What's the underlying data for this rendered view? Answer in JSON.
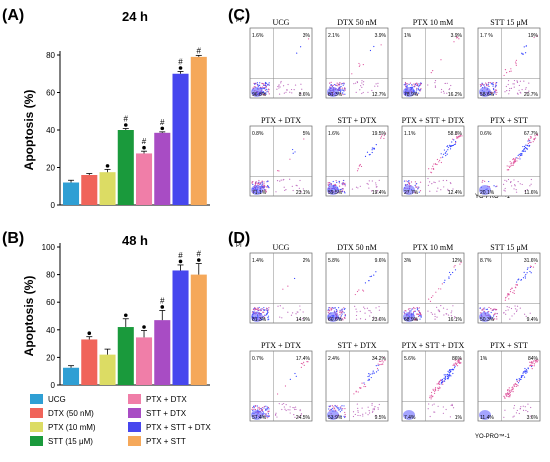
{
  "panels": {
    "A": "(A)",
    "B": "(B)",
    "C": "(C)",
    "D": "(D)"
  },
  "chart_data": [
    {
      "type": "bar",
      "panel": "(A)",
      "title": "24 h",
      "ylabel": "Apoptosis (%)",
      "ylim": [
        0,
        80
      ],
      "yticks": [
        0,
        20,
        40,
        60,
        80
      ],
      "categories": [
        "UCG",
        "DTX (50 nM)",
        "PTX (10 mM)",
        "STT (15 μM)",
        "PTX + DTX",
        "STT + DTX",
        "PTX + STT + DTX",
        "PTX + STT"
      ],
      "values": [
        12,
        16,
        17.5,
        40,
        27.5,
        38.5,
        70,
        79
      ],
      "errors": [
        1.2,
        0.8,
        1.5,
        0.8,
        1.2,
        0.5,
        1.2,
        0.8
      ],
      "annotations": [
        "",
        "",
        "•",
        "•#",
        "•#",
        "•#",
        "•#",
        "#"
      ]
    },
    {
      "type": "bar",
      "panel": "(B)",
      "title": "48 h",
      "ylabel": "Apoptosis (%)",
      "ylim": [
        0,
        100
      ],
      "yticks": [
        0,
        20,
        40,
        60,
        80,
        100
      ],
      "categories": [
        "UCG",
        "DTX (50 nM)",
        "PTX (10 mM)",
        "STT (15 μM)",
        "PTX + DTX",
        "STT + DTX",
        "PTX + STT + DTX",
        "PTX + STT"
      ],
      "values": [
        12.5,
        33,
        22,
        42,
        34.5,
        47,
        83,
        80
      ],
      "errors": [
        1.5,
        2,
        4,
        6,
        5,
        7,
        4,
        8
      ],
      "annotations": [
        "",
        "•",
        "",
        "•",
        "•",
        "•#",
        "•#",
        "•#"
      ]
    },
    {
      "type": "scatter",
      "panel": "(C)",
      "xlabel": "YO-PRO™-1",
      "ylabel": "PI",
      "plots": [
        {
          "title": "UCG",
          "q": [
            "1.6%",
            "3%",
            "96.8%",
            "8.6%"
          ]
        },
        {
          "title": "DTX 50 nM",
          "q": [
            "2.1%",
            "3.9%",
            "81.3%",
            "12.7%"
          ]
        },
        {
          "title": "PTX 10 mM",
          "q": [
            "1%",
            "3.9%",
            "78.9%",
            "16.2%"
          ]
        },
        {
          "title": "STT 15 μM",
          "q": [
            "1.7 %",
            "19%",
            "58.6%",
            "20.7%"
          ]
        },
        {
          "title": "PTX + DTX",
          "q": [
            "0.8%",
            "5%",
            "71.1%",
            "23.1%"
          ]
        },
        {
          "title": "STT + DTX",
          "q": [
            "1.6%",
            "19.5%",
            "59.5%",
            "19.4%"
          ]
        },
        {
          "title": "PTX + STT + DTX",
          "q": [
            "1.1%",
            "58.8%",
            "27.7%",
            "12.4%"
          ]
        },
        {
          "title": "PTX + STT",
          "q": [
            "0.6%",
            "67.7%",
            "20.1%",
            "11.6%"
          ]
        }
      ]
    },
    {
      "type": "scatter",
      "panel": "(D)",
      "xlabel": "YO-PRO™-1",
      "ylabel": "PI",
      "plots": [
        {
          "title": "UCG",
          "q": [
            "1.4%",
            "2%",
            "81.3%",
            "14.9%"
          ]
        },
        {
          "title": "DTX 50 nM",
          "q": [
            "5.8%",
            "9.6%",
            "60.6%",
            "23.6%"
          ]
        },
        {
          "title": "PTX 10 mM",
          "q": [
            "3%",
            "12%",
            "68.9%",
            "16.1%"
          ]
        },
        {
          "title": "STT 15 μM",
          "q": [
            "8.7%",
            "31.6%",
            "50.3%",
            "9.4%"
          ]
        },
        {
          "title": "PTX + DTX",
          "q": [
            "0.7%",
            "17.4%",
            "57.4%",
            "24.5%"
          ]
        },
        {
          "title": "STT + DTX",
          "q": [
            "2.4%",
            "34.2%",
            "53.9%",
            "9.5%"
          ]
        },
        {
          "title": "PTX + STT + DTX",
          "q": [
            "5.6%",
            "86%",
            "7.4%",
            "1%"
          ]
        },
        {
          "title": "PTX + STT",
          "q": [
            "1%",
            "84%",
            "11.4%",
            "3.6%"
          ]
        }
      ]
    }
  ],
  "legend": [
    {
      "label": "UCG",
      "color": "#2f9fd4"
    },
    {
      "label": "DTX (50 nM)",
      "color": "#f0645a"
    },
    {
      "label": "PTX (10 mM)",
      "color": "#dcdc64"
    },
    {
      "label": "STT (15 μM)",
      "color": "#1a9a3c"
    },
    {
      "label": "PTX + DTX",
      "color": "#f07ea8"
    },
    {
      "label": "STT + DTX",
      "color": "#a84cc4"
    },
    {
      "label": "PTX + STT + DTX",
      "color": "#4646ee"
    },
    {
      "label": "PTX + STT",
      "color": "#f5a85a"
    }
  ]
}
